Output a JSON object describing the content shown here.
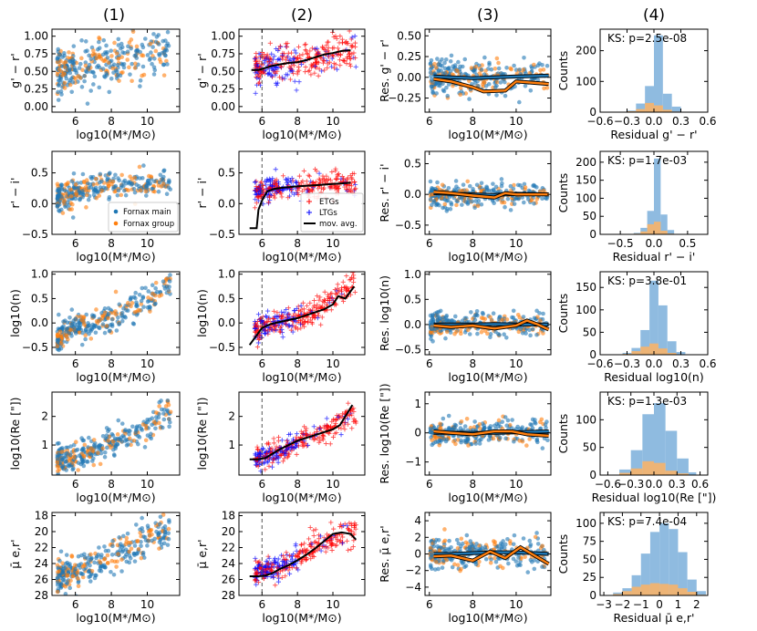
{
  "figure": {
    "column_titles": [
      "(1)",
      "(2)",
      "(3)",
      "(4)"
    ],
    "x_label_mass": "log10(M*/M⊙)",
    "colors": {
      "fornax_main": "#1f77b4",
      "fornax_group": "#ff7f0e",
      "etg": "#ff0000",
      "ltg": "#0000ff",
      "mov_avg": "#000000",
      "hist_main": "#8fbbe0",
      "hist_group": "#f7b46a",
      "dashed_line": "#555555"
    }
  },
  "legends": {
    "col1": [
      "Fornax main",
      "Fornax group"
    ],
    "col2": [
      "ETGs",
      "LTGs",
      "mov. avg."
    ]
  },
  "chart_data": [
    {
      "row": 0,
      "property": "g' - r'",
      "ylabel": "g' − r'",
      "ylabel_res": "Res. g' − r'",
      "ylim": [
        -0.08,
        1.1
      ],
      "yticks": [
        0.0,
        0.25,
        0.5,
        0.75,
        1.0
      ],
      "ytick_labels": [
        "0.00",
        "0.25",
        "0.50",
        "0.75",
        "1.00"
      ],
      "yreverse": false,
      "scatter_trend": [
        [
          5,
          0.5
        ],
        [
          6,
          0.55
        ],
        [
          7,
          0.6
        ],
        [
          8,
          0.63
        ],
        [
          9,
          0.68
        ],
        [
          10,
          0.73
        ],
        [
          11,
          0.8
        ]
      ],
      "scatter_spread": 0.16,
      "mov_avg": [
        [
          5.4,
          0.52
        ],
        [
          5.8,
          0.52
        ],
        [
          6.2,
          0.55
        ],
        [
          6.6,
          0.58
        ],
        [
          7.0,
          0.6
        ],
        [
          7.5,
          0.62
        ],
        [
          8.0,
          0.63
        ],
        [
          8.5,
          0.66
        ],
        [
          9.0,
          0.7
        ],
        [
          9.5,
          0.74
        ],
        [
          10.0,
          0.76
        ],
        [
          10.5,
          0.79
        ],
        [
          11.0,
          0.8
        ]
      ],
      "res_ylim": [
        -0.42,
        0.58
      ],
      "res_yticks": [
        -0.25,
        0.0,
        0.25,
        0.5
      ],
      "res_ytick_labels": [
        "−0.25",
        "0.00",
        "0.25",
        "0.50"
      ],
      "res_spread": 0.1,
      "res_main": [
        [
          6.2,
          0.01
        ],
        [
          7,
          0.0
        ],
        [
          8,
          -0.01
        ],
        [
          9,
          0.0
        ],
        [
          10,
          0.01
        ],
        [
          11.5,
          0.02
        ]
      ],
      "res_group": [
        [
          6.2,
          -0.02
        ],
        [
          7,
          -0.05
        ],
        [
          8,
          -0.12
        ],
        [
          8.5,
          -0.17
        ],
        [
          9.5,
          -0.16
        ],
        [
          10,
          -0.05
        ],
        [
          11.5,
          -0.08
        ]
      ],
      "hist_title": "KS: p=2.5e-08",
      "hist_xlabel": "Residual g' − r'",
      "hist_xlim": [
        -0.6,
        0.6
      ],
      "hist_xticks": [
        -0.6,
        -0.3,
        0.0,
        0.3,
        0.6
      ],
      "hist_xtick_labels": [
        "−0.6",
        "−0.3",
        "0.0",
        "0.3",
        "0.6"
      ],
      "hist_ylim": [
        0,
        270
      ],
      "hist_yticks": [
        0,
        100,
        200
      ],
      "hist_ytick_labels": [
        "0",
        "100",
        "200"
      ],
      "hist_edges": [
        -0.3,
        -0.2,
        -0.1,
        0.0,
        0.1,
        0.2,
        0.3
      ],
      "hist_main": [
        5,
        28,
        85,
        250,
        60,
        18
      ],
      "hist_group": [
        3,
        10,
        30,
        22,
        8,
        2
      ]
    },
    {
      "row": 1,
      "property": "r' - i'",
      "ylabel": "r' − i'",
      "ylabel_res": "Res. r' − i'",
      "ylim": [
        -0.5,
        0.85
      ],
      "yticks": [
        -0.5,
        0.0,
        0.5
      ],
      "ytick_labels": [
        "−0.5",
        "0.0",
        "0.5"
      ],
      "yreverse": false,
      "scatter_trend": [
        [
          5,
          0.1
        ],
        [
          6,
          0.2
        ],
        [
          7,
          0.25
        ],
        [
          8,
          0.28
        ],
        [
          9,
          0.3
        ],
        [
          10,
          0.32
        ],
        [
          11,
          0.35
        ]
      ],
      "scatter_spread": 0.11,
      "mov_avg": [
        [
          5.3,
          -0.4
        ],
        [
          5.7,
          -0.4
        ],
        [
          5.8,
          -0.1
        ],
        [
          6.0,
          0.05
        ],
        [
          6.3,
          0.2
        ],
        [
          6.7,
          0.24
        ],
        [
          7.2,
          0.26
        ],
        [
          8,
          0.28
        ],
        [
          9,
          0.3
        ],
        [
          10,
          0.32
        ],
        [
          11,
          0.34
        ]
      ],
      "res_ylim": [
        -0.65,
        0.7
      ],
      "res_yticks": [
        -0.5,
        0.0,
        0.5
      ],
      "res_ytick_labels": [
        "−0.5",
        "0.0",
        "0.5"
      ],
      "res_spread": 0.1,
      "res_main": [
        [
          6.2,
          0.02
        ],
        [
          7,
          0.01
        ],
        [
          8,
          0.0
        ],
        [
          9,
          -0.01
        ],
        [
          10,
          0.01
        ],
        [
          11.5,
          0.0
        ]
      ],
      "res_group": [
        [
          6.2,
          0.04
        ],
        [
          7,
          0.02
        ],
        [
          8,
          -0.02
        ],
        [
          9,
          -0.05
        ],
        [
          9.5,
          0.02
        ],
        [
          10,
          0.0
        ],
        [
          11.5,
          0.0
        ]
      ],
      "hist_title": "KS: p=1.7e-03",
      "hist_xlabel": "Residual r' − i'",
      "hist_xlim": [
        -0.8,
        0.8
      ],
      "hist_xticks": [
        -0.5,
        0.0,
        0.5
      ],
      "hist_xtick_labels": [
        "−0.5",
        "0.0",
        "0.5"
      ],
      "hist_ylim": [
        0,
        230
      ],
      "hist_yticks": [
        0,
        50,
        100,
        150,
        200
      ],
      "hist_ytick_labels": [
        "0",
        "50",
        "100",
        "150",
        "200"
      ],
      "hist_edges": [
        -0.3,
        -0.2,
        -0.1,
        0.0,
        0.1,
        0.2,
        0.3
      ],
      "hist_main": [
        4,
        18,
        65,
        210,
        55,
        12
      ],
      "hist_group": [
        2,
        8,
        28,
        35,
        10,
        2
      ]
    },
    {
      "row": 2,
      "property": "log10(n)",
      "ylabel": "log10(n)",
      "ylabel_res": "Res. log10(n)",
      "ylim": [
        -0.65,
        1.05
      ],
      "yticks": [
        -0.5,
        0.0,
        0.5,
        1.0
      ],
      "ytick_labels": [
        "−0.5",
        "0.0",
        "0.5",
        "1.0"
      ],
      "yreverse": false,
      "scatter_trend": [
        [
          5,
          -0.35
        ],
        [
          6,
          -0.05
        ],
        [
          7,
          0.0
        ],
        [
          8,
          0.1
        ],
        [
          9,
          0.25
        ],
        [
          10,
          0.45
        ],
        [
          11,
          0.75
        ]
      ],
      "scatter_spread": 0.14,
      "mov_avg": [
        [
          5.3,
          -0.45
        ],
        [
          5.6,
          -0.3
        ],
        [
          6.0,
          -0.1
        ],
        [
          6.5,
          -0.02
        ],
        [
          7,
          0.02
        ],
        [
          8,
          0.1
        ],
        [
          9,
          0.22
        ],
        [
          9.5,
          0.28
        ],
        [
          10,
          0.38
        ],
        [
          10.3,
          0.55
        ],
        [
          10.7,
          0.5
        ],
        [
          11.2,
          0.75
        ]
      ],
      "res_ylim": [
        -0.6,
        1.05
      ],
      "res_yticks": [
        -0.5,
        0.0,
        0.5,
        1.0
      ],
      "res_ytick_labels": [
        "−0.5",
        "0.0",
        "0.5",
        "1.0"
      ],
      "res_spread": 0.12,
      "res_main": [
        [
          6.2,
          0.0
        ],
        [
          7,
          0.0
        ],
        [
          8,
          0.0
        ],
        [
          9,
          0.01
        ],
        [
          10,
          0.0
        ],
        [
          11.5,
          0.0
        ]
      ],
      "res_group": [
        [
          6.2,
          -0.02
        ],
        [
          7,
          -0.05
        ],
        [
          8,
          -0.02
        ],
        [
          9,
          -0.08
        ],
        [
          10,
          -0.02
        ],
        [
          10.5,
          0.08
        ],
        [
          11,
          0.0
        ],
        [
          11.5,
          -0.1
        ]
      ],
      "hist_title": "KS: p=3.8e-01",
      "hist_xlabel": "Residual log10(n)",
      "hist_xlim": [
        -0.6,
        0.6
      ],
      "hist_xticks": [
        -0.6,
        -0.3,
        0.0,
        0.3,
        0.6
      ],
      "hist_xtick_labels": [
        "−0.6",
        "−0.3",
        "0.0",
        "0.3",
        "0.6"
      ],
      "hist_ylim": [
        0,
        185
      ],
      "hist_yticks": [
        0,
        50,
        100,
        150
      ],
      "hist_ytick_labels": [
        "0",
        "50",
        "100",
        "150"
      ],
      "hist_edges": [
        -0.35,
        -0.25,
        -0.15,
        -0.05,
        0.05,
        0.15,
        0.25,
        0.35
      ],
      "hist_main": [
        4,
        15,
        55,
        165,
        110,
        30,
        6
      ],
      "hist_group": [
        2,
        8,
        18,
        25,
        14,
        4,
        1
      ]
    },
    {
      "row": 3,
      "property": "log10(Re)",
      "ylabel": "log10(Re [\"])",
      "ylabel_res": "Res. log10(Re [\"])",
      "ylim": [
        -0.05,
        2.85
      ],
      "yticks": [
        1,
        2
      ],
      "ytick_labels": [
        "1",
        "2"
      ],
      "yreverse": false,
      "scatter_trend": [
        [
          5,
          0.5
        ],
        [
          6,
          0.55
        ],
        [
          7,
          0.8
        ],
        [
          8,
          1.1
        ],
        [
          9,
          1.35
        ],
        [
          10,
          1.6
        ],
        [
          11,
          2.1
        ]
      ],
      "scatter_spread": 0.22,
      "mov_avg": [
        [
          5.3,
          0.5
        ],
        [
          5.8,
          0.5
        ],
        [
          6.2,
          0.55
        ],
        [
          6.6,
          0.7
        ],
        [
          7,
          0.85
        ],
        [
          7.5,
          1.0
        ],
        [
          8,
          1.15
        ],
        [
          8.5,
          1.25
        ],
        [
          9,
          1.35
        ],
        [
          9.5,
          1.45
        ],
        [
          10,
          1.55
        ],
        [
          10.4,
          1.7
        ],
        [
          10.7,
          2.0
        ],
        [
          11.1,
          2.4
        ]
      ],
      "res_ylim": [
        -1.45,
        1.4
      ],
      "res_yticks": [
        -1,
        0,
        1
      ],
      "res_ytick_labels": [
        "−1",
        "0",
        "1"
      ],
      "res_spread": 0.2,
      "res_main": [
        [
          6.2,
          0.0
        ],
        [
          7,
          0.0
        ],
        [
          8,
          0.0
        ],
        [
          9,
          0.0
        ],
        [
          10,
          0.02
        ],
        [
          11.5,
          0.05
        ]
      ],
      "res_group": [
        [
          6.2,
          0.05
        ],
        [
          7,
          0.0
        ],
        [
          8,
          -0.05
        ],
        [
          9,
          0.05
        ],
        [
          9.8,
          0.05
        ],
        [
          10.5,
          -0.05
        ],
        [
          11.5,
          -0.1
        ]
      ],
      "hist_title": "KS: p=1.3e-03",
      "hist_xlabel": "Residual log10(Re [\"])",
      "hist_xlim": [
        -0.7,
        0.7
      ],
      "hist_xticks": [
        -0.6,
        -0.3,
        0.0,
        0.3,
        0.6
      ],
      "hist_xtick_labels": [
        "−0.6",
        "−0.3",
        "0.0",
        "0.3",
        "0.6"
      ],
      "hist_ylim": [
        0,
        150
      ],
      "hist_yticks": [
        0,
        50,
        100
      ],
      "hist_ytick_labels": [
        "0",
        "50",
        "100"
      ],
      "hist_edges": [
        -0.45,
        -0.3,
        -0.15,
        0.0,
        0.15,
        0.3,
        0.45,
        0.55
      ],
      "hist_main": [
        10,
        45,
        110,
        130,
        80,
        30,
        5
      ],
      "hist_group": [
        4,
        12,
        25,
        22,
        8,
        3,
        0
      ]
    },
    {
      "row": 4,
      "property": "mu_e,r'",
      "ylabel": "μ̄ e,r'",
      "ylabel_res": "Res. μ̄ e,r'",
      "ylim": [
        17.6,
        28
      ],
      "yticks": [
        18,
        20,
        22,
        24,
        26,
        28
      ],
      "ytick_labels": [
        "18",
        "20",
        "22",
        "24",
        "26",
        "28"
      ],
      "yreverse": true,
      "scatter_trend": [
        [
          5,
          25.5
        ],
        [
          6,
          25
        ],
        [
          7,
          24.3
        ],
        [
          8,
          23.3
        ],
        [
          9,
          22
        ],
        [
          10,
          21
        ],
        [
          11,
          20
        ]
      ],
      "scatter_spread": 1.0,
      "mov_avg": [
        [
          5.3,
          25.6
        ],
        [
          5.8,
          25.6
        ],
        [
          6.2,
          25.5
        ],
        [
          6.6,
          25.2
        ],
        [
          7,
          24.7
        ],
        [
          7.5,
          24.2
        ],
        [
          8,
          23.6
        ],
        [
          8.5,
          22.9
        ],
        [
          9,
          22.1
        ],
        [
          9.5,
          21.2
        ],
        [
          10,
          20.3
        ],
        [
          10.5,
          20.1
        ],
        [
          11,
          20.3
        ],
        [
          11.3,
          21.0
        ]
      ],
      "res_ylim": [
        -5,
        5
      ],
      "res_yticks": [
        -4,
        -2,
        0,
        2,
        4
      ],
      "res_ytick_labels": [
        "−4",
        "−2",
        "0",
        "2",
        "4"
      ],
      "res_spread": 0.9,
      "res_main": [
        [
          6.2,
          0.0
        ],
        [
          7,
          0.0
        ],
        [
          8,
          0.1
        ],
        [
          9,
          0.2
        ],
        [
          10,
          0.2
        ],
        [
          11.5,
          0.0
        ]
      ],
      "res_group": [
        [
          6.2,
          -0.3
        ],
        [
          7,
          -0.2
        ],
        [
          8,
          -0.8
        ],
        [
          8.8,
          0.3
        ],
        [
          9.5,
          -0.5
        ],
        [
          10.2,
          0.8
        ],
        [
          11.5,
          -1.2
        ]
      ],
      "hist_title": "KS: p=7.4e-04",
      "hist_xlabel": "Residual μ̄ e,r'",
      "hist_xlim": [
        -3.2,
        2.6
      ],
      "hist_xticks": [
        -3,
        -2,
        -1,
        0,
        1,
        2
      ],
      "hist_xtick_labels": [
        "−3",
        "−2",
        "−1",
        "0",
        "1",
        "2"
      ],
      "hist_ylim": [
        0,
        115
      ],
      "hist_yticks": [
        0,
        25,
        50,
        75,
        100
      ],
      "hist_ytick_labels": [
        "0",
        "25",
        "50",
        "75",
        "100"
      ],
      "hist_edges": [
        -2.5,
        -2.0,
        -1.5,
        -1.0,
        -0.5,
        0.0,
        0.5,
        1.0,
        1.5,
        2.0,
        2.5
      ],
      "hist_main": [
        4,
        10,
        28,
        58,
        88,
        100,
        92,
        60,
        22,
        6
      ],
      "hist_group": [
        2,
        6,
        12,
        15,
        17,
        16,
        15,
        10,
        5,
        1
      ]
    }
  ],
  "x_axis": {
    "mass_xlim": [
      4.7,
      11.8
    ],
    "mass_xticks": [
      6,
      8,
      10
    ],
    "mass_xtick_labels": [
      "6",
      "8",
      "10"
    ],
    "res_xlim": [
      5.8,
      11.6
    ],
    "res_xticks": [
      6,
      8,
      10
    ],
    "res_xtick_labels": [
      "6",
      "8",
      "10"
    ],
    "cut_value": 6.0
  }
}
